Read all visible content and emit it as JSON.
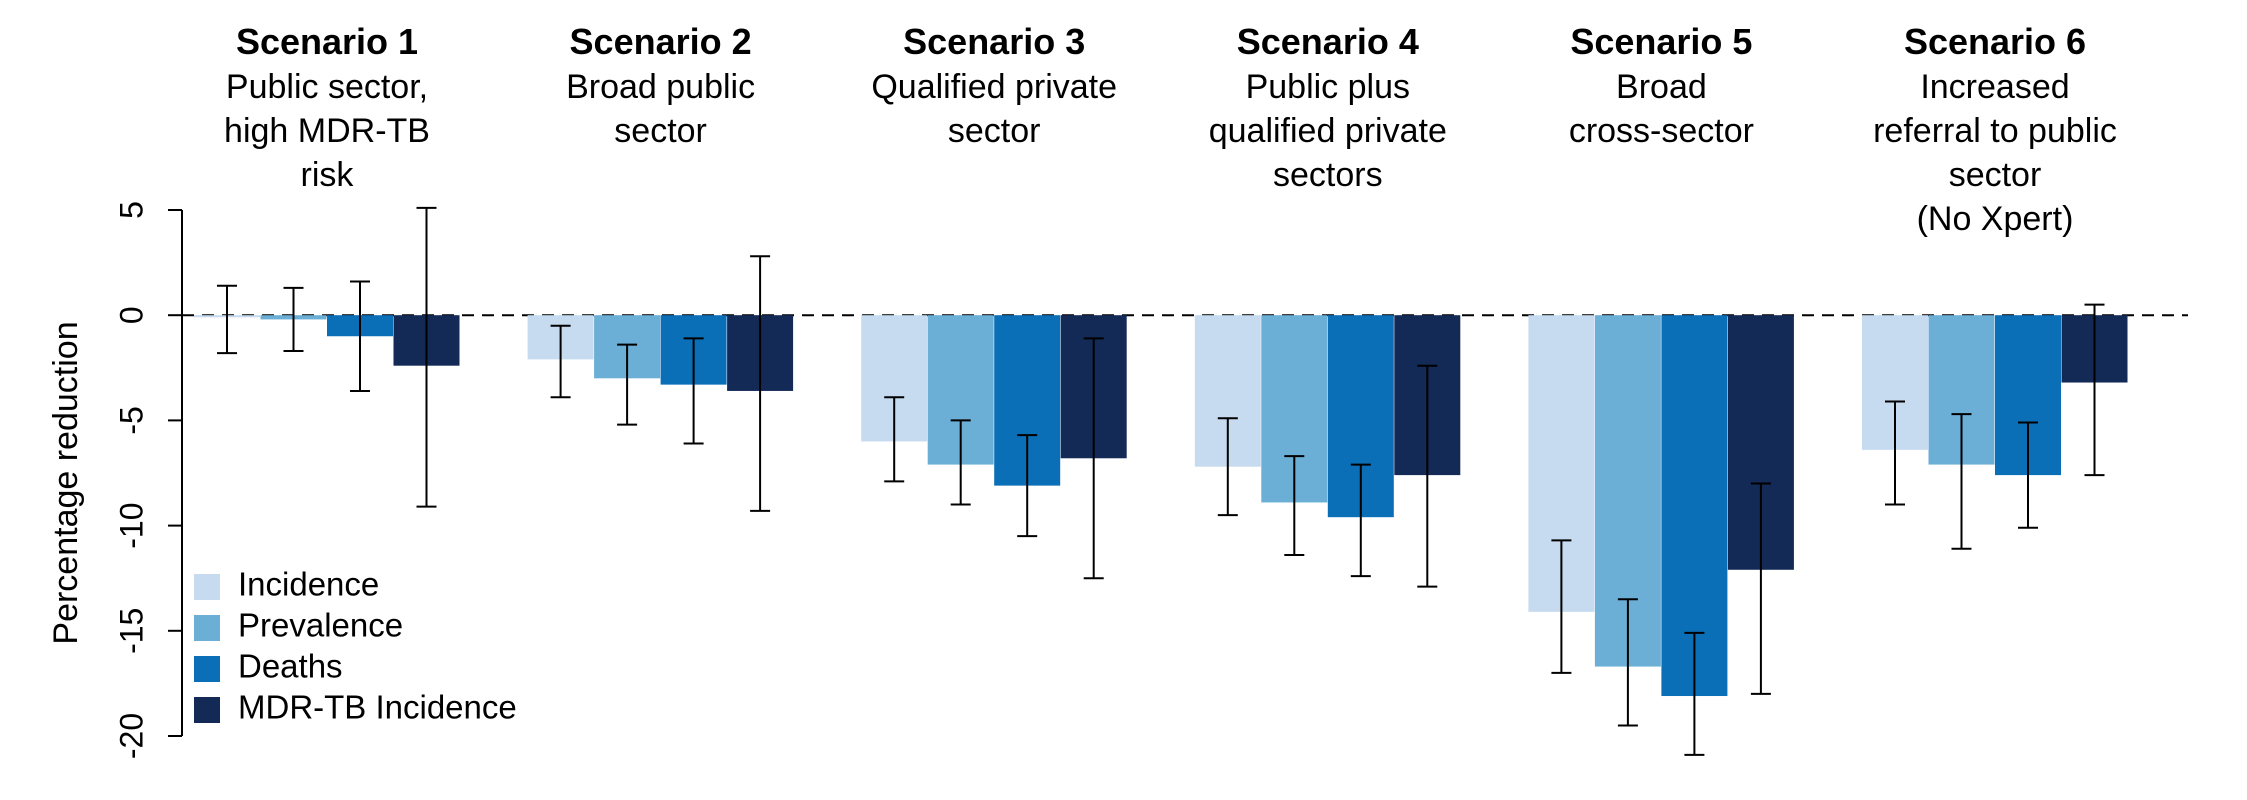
{
  "chart_data": {
    "type": "bar",
    "ylabel": "Percentage reduction",
    "ylim": [
      -20,
      5
    ],
    "yticks": [
      5,
      0,
      -5,
      -10,
      -15,
      -20
    ],
    "zero_line": "dashed",
    "grid": false,
    "legend_position": "bottom-left",
    "groups": [
      {
        "title": "Scenario 1",
        "subtitle": [
          "Public sector,",
          "high MDR-TB",
          "risk"
        ]
      },
      {
        "title": "Scenario 2",
        "subtitle": [
          "Broad public",
          "sector"
        ]
      },
      {
        "title": "Scenario 3",
        "subtitle": [
          "Qualified private",
          "sector"
        ]
      },
      {
        "title": "Scenario 4",
        "subtitle": [
          "Public plus",
          "qualified private",
          "sectors"
        ]
      },
      {
        "title": "Scenario 5",
        "subtitle": [
          "Broad",
          "cross-sector"
        ]
      },
      {
        "title": "Scenario 6",
        "subtitle": [
          "Increased",
          "referral to public",
          "sector",
          "(No Xpert)"
        ]
      }
    ],
    "series": [
      {
        "name": "Incidence",
        "color": "#c6dbef",
        "values": [
          -0.1,
          -2.1,
          -6.0,
          -7.2,
          -14.1,
          -6.4
        ],
        "err_low": [
          -1.8,
          -3.9,
          -7.9,
          -9.5,
          -17.0,
          -9.0
        ],
        "err_high": [
          1.4,
          -0.5,
          -3.9,
          -4.9,
          -10.7,
          -4.1
        ]
      },
      {
        "name": "Prevalence",
        "color": "#6baed6",
        "values": [
          -0.2,
          -3.0,
          -7.1,
          -8.9,
          -16.7,
          -7.1
        ],
        "err_low": [
          -1.7,
          -5.2,
          -9.0,
          -11.4,
          -19.5,
          -11.1
        ],
        "err_high": [
          1.3,
          -1.4,
          -5.0,
          -6.7,
          -13.5,
          -4.7
        ]
      },
      {
        "name": "Deaths",
        "color": "#0b6fb8",
        "values": [
          -1.0,
          -3.3,
          -8.1,
          -9.6,
          -18.1,
          -7.6
        ],
        "err_low": [
          -3.6,
          -6.1,
          -10.5,
          -12.4,
          -20.9,
          -10.1
        ],
        "err_high": [
          1.6,
          -1.1,
          -5.7,
          -7.1,
          -15.1,
          -5.1
        ]
      },
      {
        "name": "MDR-TB Incidence",
        "color": "#132a57",
        "values": [
          -2.4,
          -3.6,
          -6.8,
          -7.6,
          -12.1,
          -3.2
        ],
        "err_low": [
          -9.1,
          -9.3,
          -12.5,
          -12.9,
          -18.0,
          -7.6
        ],
        "err_high": [
          5.1,
          2.8,
          -1.1,
          -2.4,
          -8.0,
          0.5
        ]
      }
    ]
  }
}
